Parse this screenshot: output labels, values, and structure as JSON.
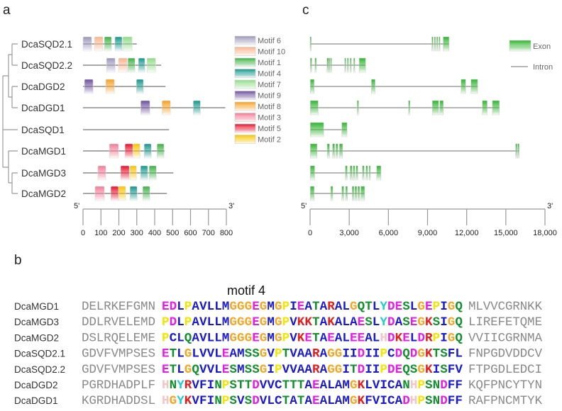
{
  "panels": {
    "a": "a",
    "b": "b",
    "c": "c"
  },
  "motif_panel": {
    "axis": {
      "start_label": "5'",
      "end_label": "3'",
      "ticks": [
        "0",
        "100",
        "200",
        "300",
        "400",
        "500",
        "600",
        "700",
        "800"
      ],
      "max": 800
    },
    "legend": [
      {
        "label": "Motif 6",
        "color": "#9b95b8"
      },
      {
        "label": "Motif 10",
        "color": "#f8b48c"
      },
      {
        "label": "Motif 1",
        "color": "#3cb043"
      },
      {
        "label": "Motif 4",
        "color": "#12968a"
      },
      {
        "label": "Motif 7",
        "color": "#8fdc86"
      },
      {
        "label": "Motif 9",
        "color": "#6b4f9c"
      },
      {
        "label": "Motif 8",
        "color": "#f5a020"
      },
      {
        "label": "Motif 3",
        "color": "#f27a95"
      },
      {
        "label": "Motif 5",
        "color": "#e8102a"
      },
      {
        "label": "Motif 2",
        "color": "#f8c400"
      }
    ],
    "genes": [
      {
        "name": "DcaSQD2.1",
        "length": 300,
        "motifs": [
          [
            "Motif 6",
            0,
            48
          ],
          [
            "Motif 10",
            64,
            111
          ],
          [
            "Motif 1",
            119,
            159
          ],
          [
            "Motif 4",
            178,
            218
          ],
          [
            "Motif 7",
            222,
            274
          ]
        ]
      },
      {
        "name": "DcaSQD2.2",
        "length": 436,
        "motifs": [
          [
            "Motif 6",
            131,
            179
          ],
          [
            "Motif 10",
            198,
            246
          ],
          [
            "Motif 1",
            250,
            290
          ],
          [
            "Motif 4",
            309,
            345
          ],
          [
            "Motif 7",
            357,
            405
          ]
        ]
      },
      {
        "name": "DcaDGD2",
        "length": 460,
        "motifs": [
          [
            "Motif 9",
            8,
            56
          ],
          [
            "Motif 8",
            127,
            175
          ],
          [
            "Motif 4",
            298,
            337
          ]
        ]
      },
      {
        "name": "DcaDGD1",
        "length": 794,
        "motifs": [
          [
            "Motif 9",
            322,
            373
          ],
          [
            "Motif 8",
            441,
            488
          ],
          [
            "Motif 4",
            615,
            655
          ]
        ]
      },
      {
        "name": "DcaSQD1",
        "length": 480,
        "motifs": []
      },
      {
        "name": "DcaMGD1",
        "length": 456,
        "motifs": [
          [
            "Motif 3",
            147,
            198
          ],
          [
            "Motif 5",
            234,
            278
          ],
          [
            "Motif 2",
            278,
            318
          ],
          [
            "Motif 4",
            341,
            381
          ],
          [
            "Motif 1",
            413,
            452
          ]
        ]
      },
      {
        "name": "DcaMGD3",
        "length": 504,
        "motifs": [
          [
            "Motif 3",
            83,
            127
          ],
          [
            "Motif 5",
            210,
            258
          ],
          [
            "Motif 2",
            262,
            298
          ],
          [
            "Motif 4",
            321,
            361
          ],
          [
            "Motif 1",
            369,
            409
          ]
        ]
      },
      {
        "name": "DcaMGD2",
        "length": 468,
        "motifs": [
          [
            "Motif 3",
            67,
            119
          ],
          [
            "Motif 5",
            155,
            198
          ],
          [
            "Motif 2",
            198,
            238
          ],
          [
            "Motif 4",
            262,
            302
          ],
          [
            "Motif 1",
            333,
            373
          ]
        ]
      }
    ]
  },
  "gene_structure_panel": {
    "axis": {
      "start_label": "5'",
      "end_label": "3'",
      "ticks": [
        "0",
        "3,000",
        "6,000",
        "9,000",
        "12,000",
        "15,000",
        "18,000"
      ],
      "max": 18000
    },
    "legend": {
      "exon_label": "Exon",
      "intron_label": "Intron",
      "exon_color": "#2fb52f",
      "intron_color": "#8c8c8c"
    },
    "genes": [
      {
        "exons": [
          [
            0,
            60
          ],
          [
            9330,
            9430
          ],
          [
            9520,
            9600
          ],
          [
            9700,
            9780
          ],
          [
            9870,
            9950
          ],
          [
            10200,
            10650
          ]
        ]
      },
      {
        "exons": [
          [
            20,
            130
          ],
          [
            370,
            480
          ],
          [
            1290,
            1400
          ],
          [
            1420,
            1480
          ],
          [
            1560,
            1650
          ],
          [
            2650,
            2740
          ],
          [
            2850,
            2940
          ],
          [
            3070,
            3160
          ],
          [
            3340,
            3430
          ],
          [
            3760,
            4250
          ]
        ]
      },
      {
        "exons": [
          [
            20,
            310
          ],
          [
            4700,
            4980
          ],
          [
            11570,
            11920
          ],
          [
            12330,
            12840
          ]
        ]
      },
      {
        "exons": [
          [
            20,
            620
          ],
          [
            3610,
            3720
          ],
          [
            7540,
            7650
          ],
          [
            9370,
            9850
          ],
          [
            9940,
            10210
          ],
          [
            13200,
            13570
          ],
          [
            13970,
            14510
          ]
        ]
      },
      {
        "exons": [
          [
            20,
            1040
          ],
          [
            2430,
            2830
          ]
        ]
      },
      {
        "exons": [
          [
            20,
            530
          ],
          [
            1310,
            1490
          ],
          [
            1720,
            1880
          ],
          [
            1980,
            2130
          ],
          [
            2250,
            2490
          ],
          [
            15750,
            15860
          ],
          [
            15910,
            16020
          ]
        ]
      },
      {
        "exons": [
          [
            20,
            350
          ],
          [
            2700,
            2850
          ],
          [
            3070,
            3220
          ],
          [
            3300,
            3430
          ],
          [
            3520,
            3660
          ],
          [
            4010,
            4140
          ],
          [
            4280,
            4410
          ],
          [
            4520,
            4620
          ],
          [
            5100,
            5430
          ]
        ]
      },
      {
        "exons": [
          [
            20,
            310
          ],
          [
            1580,
            1740
          ],
          [
            2430,
            2580
          ],
          [
            2720,
            2860
          ],
          [
            3220,
            3360
          ],
          [
            3430,
            3580
          ],
          [
            3660,
            3800
          ],
          [
            3890,
            4180
          ]
        ]
      }
    ]
  },
  "alignment": {
    "title": "motif 4",
    "residue_colors": {
      "E": "#e81ce8",
      "D": "#e81ce8",
      "P": "#f2e600",
      "A": "#1a1ad2",
      "V": "#1a1ad2",
      "L": "#1a1ad2",
      "I": "#1a1ad2",
      "M": "#1a1ad2",
      "F": "#1a1ad2",
      "C": "#1a1ad2",
      "W": "#1a1ad2",
      "G": "#f5a623",
      "K": "#e51c1c",
      "R": "#e51c1c",
      "S": "#12902e",
      "T": "#12902e",
      "N": "#12902e",
      "Q": "#12902e",
      "Y": "#1ccdcd",
      "H": "#f5c4c4"
    },
    "flank_color": "#8a8a8a",
    "rows": [
      {
        "name": "DcaMGD1",
        "left": "DELRKEFGMN",
        "motif": "EDLPAVLLMGGGEGMGPIEATARALGQTLYDESLGEPIGQ",
        "right": "MLVVCGRNKK"
      },
      {
        "name": "DcaMGD3",
        "left": "DDLRVELEMD",
        "motif": "PDLPAVLLMGGGEGMGPVKKTAKALAESLYDASEGKSIGQ",
        "right": "LIREFETQME"
      },
      {
        "name": "DcaMGD2",
        "left": "DSLRQELEME",
        "motif": "PCLQAVLLMGGGEGMGPVKETAEALEEALHDKELDRPIGQ",
        "right": "VVIICGRNMA"
      },
      {
        "name": "DcaSQD2.1",
        "left": "GDVFVMPSES",
        "motif": "ETLGLVVLEAMSSGVPTVAARAGGIIDIIPCDQDGKTSFL",
        "right": "FNPGDVDDCV"
      },
      {
        "name": "DcaSQD2.2",
        "left": "GDVFVMPSES",
        "motif": "ETLGQVVLESMSSGIPVVAARAGGITDIIPDEQSGKISFV",
        "right": "FTPGDLEDCI"
      },
      {
        "name": "DcaDGD2",
        "left": "PGRDHADPLF",
        "motif": "HNYRVFINPSTTDVVCTTTAEALAMGKLVICANHPSNDFF",
        "right": "KQFPNCYTYN"
      },
      {
        "name": "DcaDGD1",
        "left": "KGRDHADDSL",
        "motif": "HGYKVFINPSVSDVLCTATAEALAMGKFVICADHPSNDFF",
        "right": "RAFPNCMTYK"
      }
    ]
  }
}
